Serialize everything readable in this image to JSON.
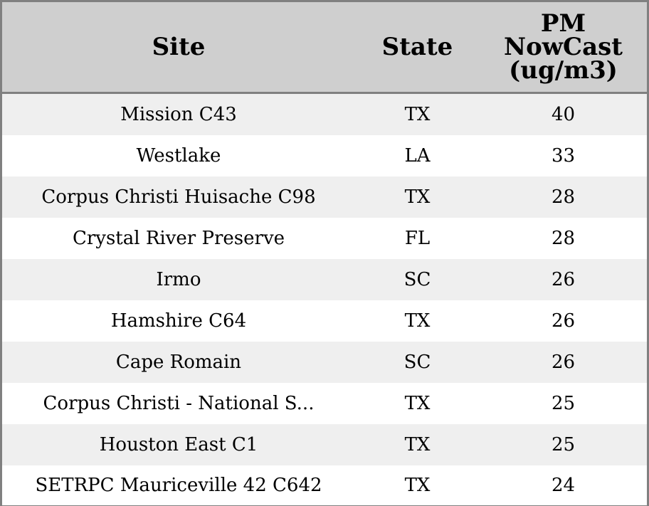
{
  "chart_data": {
    "type": "table",
    "columns": [
      "Site",
      "State",
      "PM NowCast (ug/m3)"
    ],
    "header_lines": {
      "site": [
        "Site"
      ],
      "state": [
        "State"
      ],
      "pm": [
        "PM",
        "NowCast",
        "(ug/m3)"
      ]
    },
    "rows": [
      {
        "site": "Mission C43",
        "state": "TX",
        "pm": "40"
      },
      {
        "site": "Westlake",
        "state": "LA",
        "pm": "33"
      },
      {
        "site": "Corpus Christi Huisache C98",
        "state": "TX",
        "pm": "28"
      },
      {
        "site": "Crystal River Preserve",
        "state": "FL",
        "pm": "28"
      },
      {
        "site": "Irmo",
        "state": "SC",
        "pm": "26"
      },
      {
        "site": "Hamshire C64",
        "state": "TX",
        "pm": "26"
      },
      {
        "site": "Cape Romain",
        "state": "SC",
        "pm": "26"
      },
      {
        "site": "Corpus Christi - National S...",
        "state": "TX",
        "pm": "25"
      },
      {
        "site": "Houston East C1",
        "state": "TX",
        "pm": "25"
      },
      {
        "site": "SETRPC Mauriceville 42 C642",
        "state": "TX",
        "pm": "24"
      }
    ]
  },
  "colors": {
    "header_bg": "#cfcfcf",
    "stripe_bg": "#efefef",
    "border": "#808080"
  }
}
